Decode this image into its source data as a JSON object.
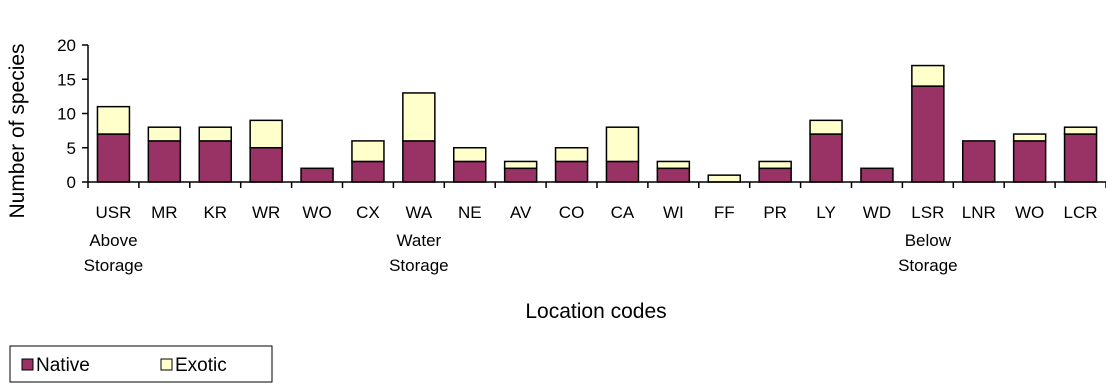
{
  "chart_data": {
    "type": "bar",
    "stacked": true,
    "categories": [
      "USR",
      "MR",
      "KR",
      "WR",
      "WO",
      "CX",
      "WA",
      "NE",
      "AV",
      "CO",
      "CA",
      "WI",
      "FF",
      "PR",
      "LY",
      "WD",
      "LSR",
      "LNR",
      "WO",
      "LCR"
    ],
    "series": [
      {
        "name": "Native",
        "color": "#993366",
        "values": [
          7,
          6,
          6,
          5,
          2,
          3,
          6,
          3,
          2,
          3,
          3,
          2,
          0,
          2,
          7,
          2,
          14,
          6,
          6,
          7
        ]
      },
      {
        "name": "Exotic",
        "color": "#FFFFCC",
        "values": [
          4,
          2,
          2,
          4,
          0,
          3,
          7,
          2,
          1,
          2,
          5,
          1,
          1,
          1,
          2,
          0,
          3,
          0,
          1,
          1
        ]
      }
    ],
    "groups": [
      {
        "lines": [
          "Above",
          "Storage"
        ],
        "category_index": 0
      },
      {
        "lines": [
          "Water",
          "Storage"
        ],
        "category_index": 6
      },
      {
        "lines": [
          "Below",
          "Storage"
        ],
        "category_index": 16
      }
    ],
    "xlabel": "Location codes",
    "ylabel": "Number of species",
    "ylim": [
      0,
      20
    ],
    "yticks": [
      0,
      5,
      10,
      15,
      20
    ],
    "grid": false,
    "legend_position": "bottom-left"
  }
}
